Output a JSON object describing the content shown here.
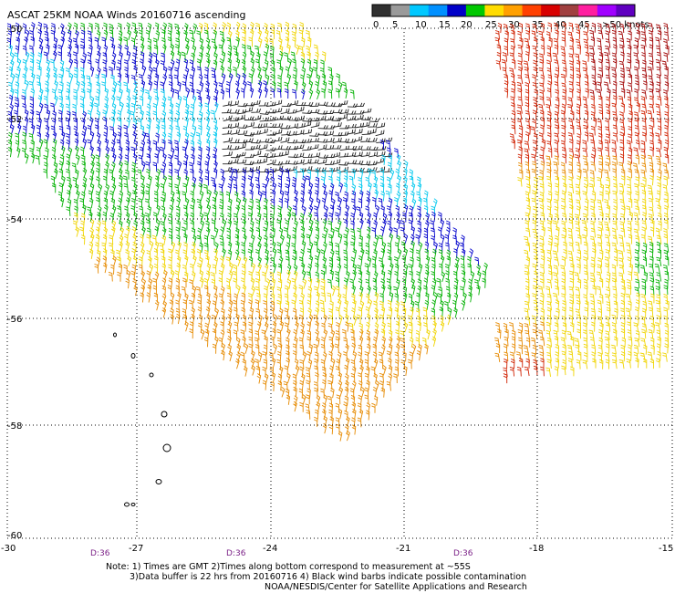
{
  "title": "ASCAT 25KM NOAA Winds 20160716 ascending",
  "legend": {
    "ticks": [
      "0",
      "5",
      "10",
      "15",
      "20",
      "25",
      "30",
      "35",
      "40",
      "45",
      ">50 knots"
    ],
    "colors": [
      "#303030",
      "#9a9a9a",
      "#00c8ff",
      "#0090ff",
      "#0000c8",
      "#00c800",
      "#ffdc00",
      "#ffa000",
      "#ff4000",
      "#d80000",
      "#a04040",
      "#ff1fa0",
      "#a000ff",
      "#6000c0"
    ]
  },
  "map": {
    "lat_labels": [
      "-50",
      "-52",
      "-54",
      "-56",
      "-58",
      "-60"
    ],
    "lon_labels": [
      "-30",
      "-27",
      "-24",
      "-21",
      "-18",
      "-15"
    ],
    "time_labels": [
      "D:36",
      "D:36",
      "D:36"
    ]
  },
  "notes": {
    "line1": "Note: 1) Times are GMT 2)Times along bottom correspond to measurement at ~55S",
    "line2": "3)Data buffer is 22 hrs from 20160716 4) Black wind barbs indicate possible contamination",
    "line3": "NOAA/NESDIS/Center for Satellite Applications and Research"
  }
}
